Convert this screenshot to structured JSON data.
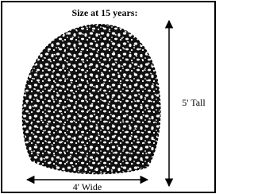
{
  "title": "Size at 15 years:",
  "height_label": "5' Tall",
  "width_label": "4' Wide"
}
